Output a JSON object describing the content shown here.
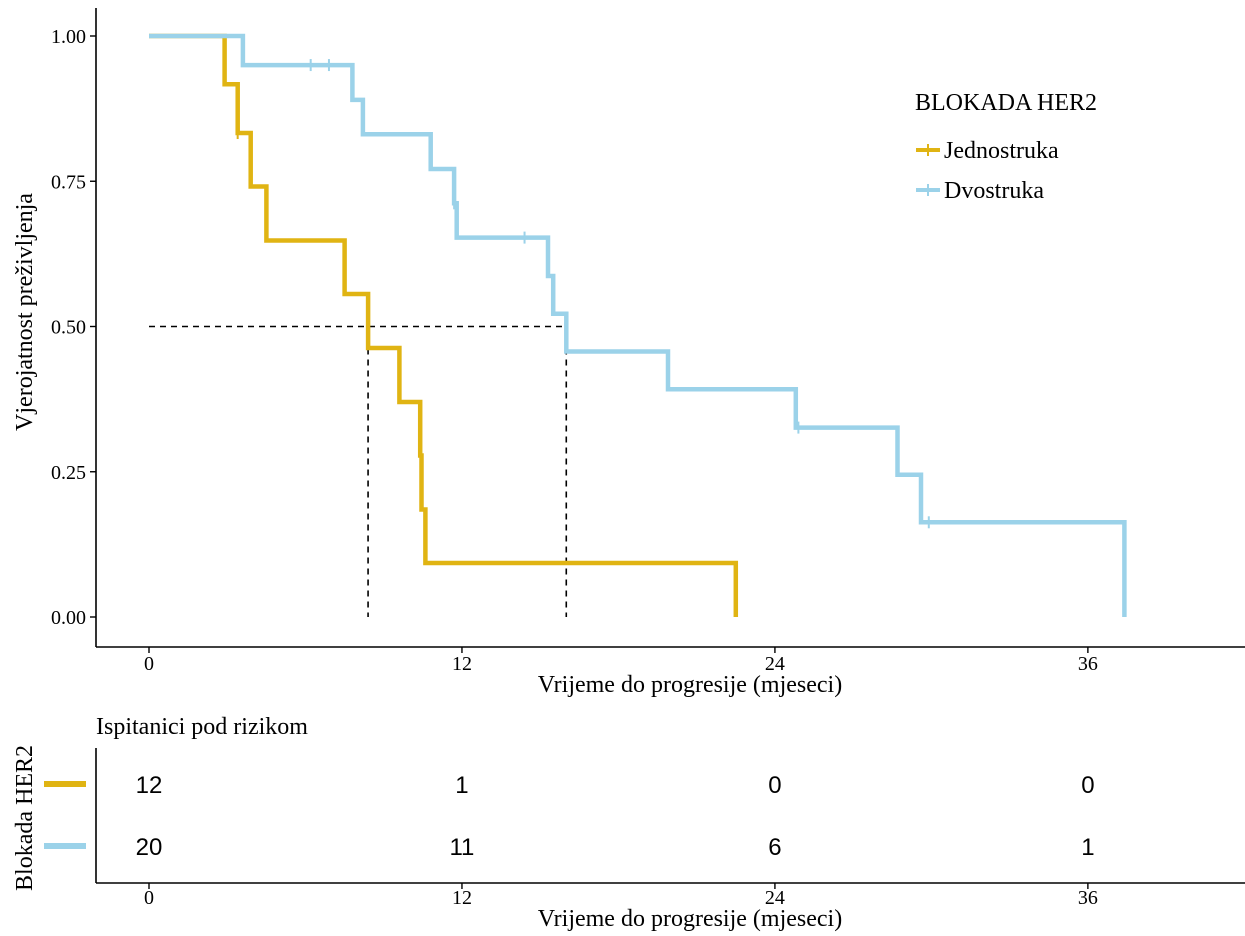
{
  "chart_data": {
    "type": "line",
    "subtype": "kaplan-meier",
    "ylabel": "Vjerojatnost preživljenja",
    "xlabel": "Vrijeme do progresije (mjeseci)",
    "xlim": [
      -2,
      42
    ],
    "ylim": [
      0,
      1
    ],
    "x_ticks": [
      0,
      12,
      24,
      36
    ],
    "y_ticks": [
      0,
      0.25,
      0.5,
      0.75,
      1
    ],
    "y_tick_labels": [
      "0.00",
      "0.25",
      "0.50",
      "0.75",
      "1.00"
    ],
    "grid": false,
    "legend": {
      "title": "BLOKADA HER2",
      "position": "top-right"
    },
    "median_lines": [
      {
        "series": "Jednostruka",
        "x": 8.4,
        "y": 0.5
      },
      {
        "series": "Dvostruka",
        "x": 16.0,
        "y": 0.5
      }
    ],
    "series": [
      {
        "name": "Jednostruka",
        "color": "#E0B413",
        "steps": [
          [
            0,
            1.0
          ],
          [
            2.9,
            1.0
          ],
          [
            2.9,
            0.917
          ],
          [
            3.4,
            0.917
          ],
          [
            3.4,
            0.833
          ],
          [
            3.9,
            0.833
          ],
          [
            3.9,
            0.741
          ],
          [
            4.5,
            0.741
          ],
          [
            4.5,
            0.648
          ],
          [
            7.5,
            0.648
          ],
          [
            7.5,
            0.556
          ],
          [
            8.4,
            0.556
          ],
          [
            8.4,
            0.463
          ],
          [
            9.6,
            0.463
          ],
          [
            9.6,
            0.37
          ],
          [
            10.4,
            0.37
          ],
          [
            10.4,
            0.278
          ],
          [
            10.45,
            0.278
          ],
          [
            10.45,
            0.185
          ],
          [
            10.6,
            0.185
          ],
          [
            10.6,
            0.093
          ],
          [
            22.5,
            0.093
          ],
          [
            22.5,
            0.0
          ]
        ],
        "censored": [
          [
            3.4,
            0.833
          ]
        ]
      },
      {
        "name": "Dvostruka",
        "color": "#9BD2E9",
        "steps": [
          [
            0,
            1.0
          ],
          [
            3.6,
            1.0
          ],
          [
            3.6,
            0.95
          ],
          [
            7.8,
            0.95
          ],
          [
            7.8,
            0.89
          ],
          [
            8.2,
            0.89
          ],
          [
            8.2,
            0.831
          ],
          [
            10.8,
            0.831
          ],
          [
            10.8,
            0.771
          ],
          [
            11.7,
            0.771
          ],
          [
            11.7,
            0.712
          ],
          [
            11.8,
            0.712
          ],
          [
            11.8,
            0.653
          ],
          [
            15.3,
            0.653
          ],
          [
            15.3,
            0.587
          ],
          [
            15.5,
            0.587
          ],
          [
            15.5,
            0.522
          ],
          [
            16.0,
            0.522
          ],
          [
            16.0,
            0.457
          ],
          [
            19.9,
            0.457
          ],
          [
            19.9,
            0.392
          ],
          [
            24.8,
            0.392
          ],
          [
            24.8,
            0.326
          ],
          [
            28.7,
            0.326
          ],
          [
            28.7,
            0.245
          ],
          [
            29.6,
            0.245
          ],
          [
            29.6,
            0.163
          ],
          [
            37.4,
            0.163
          ],
          [
            37.4,
            0.0
          ]
        ],
        "censored": [
          [
            6.2,
            0.95
          ],
          [
            6.9,
            0.95
          ],
          [
            11.7,
            0.712
          ],
          [
            14.4,
            0.653
          ],
          [
            24.9,
            0.326
          ],
          [
            29.9,
            0.163
          ]
        ]
      }
    ],
    "risk_table": {
      "title": "Ispitanici pod rizikom",
      "ylabel": "Blokada HER2",
      "xlabel": "Vrijeme do progresije (mjeseci)",
      "times": [
        0,
        12,
        24,
        36
      ],
      "rows": [
        {
          "name": "Jednostruka",
          "color": "#E0B413",
          "counts": [
            "12",
            "1",
            "0",
            "0"
          ]
        },
        {
          "name": "Dvostruka",
          "color": "#9BD2E9",
          "counts": [
            "20",
            "11",
            "6",
            "1"
          ]
        }
      ]
    }
  }
}
